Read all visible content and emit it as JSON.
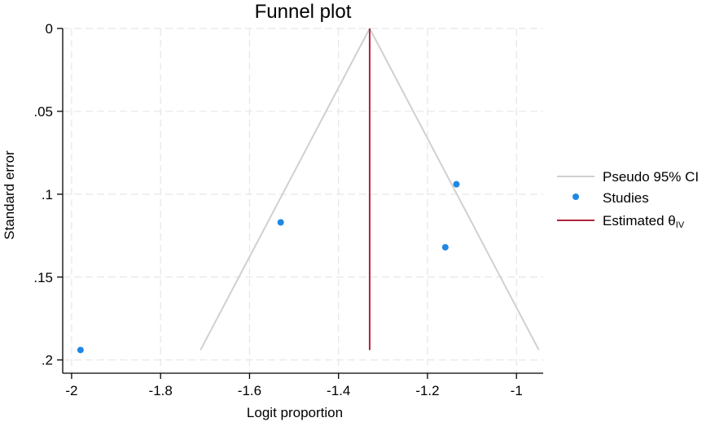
{
  "chart_data": {
    "type": "scatter",
    "title": "Funnel plot",
    "xlabel": "Logit proportion",
    "ylabel": "Standard error",
    "xlim": [
      -2.02,
      -0.94
    ],
    "ylim": [
      0,
      0.208
    ],
    "y_reversed": true,
    "grid": true,
    "x_ticks": [
      {
        "value": -2.0,
        "label": "-2"
      },
      {
        "value": -1.8,
        "label": "-1.8"
      },
      {
        "value": -1.6,
        "label": "-1.6"
      },
      {
        "value": -1.4,
        "label": "-1.4"
      },
      {
        "value": -1.2,
        "label": "-1.2"
      },
      {
        "value": -1.0,
        "label": "-1"
      }
    ],
    "y_ticks": [
      {
        "value": 0,
        "label": "0"
      },
      {
        "value": 0.05,
        "label": ".05"
      },
      {
        "value": 0.1,
        "label": ".1"
      },
      {
        "value": 0.15,
        "label": ".15"
      },
      {
        "value": 0.2,
        "label": ".2"
      }
    ],
    "estimate": {
      "x": -1.33,
      "se_range": [
        0,
        0.194
      ]
    },
    "pseudo_ci": {
      "center": -1.33,
      "se_max": 0.194
    },
    "studies": [
      {
        "x": -1.98,
        "y": 0.194
      },
      {
        "x": -1.53,
        "y": 0.117
      },
      {
        "x": -1.16,
        "y": 0.132
      },
      {
        "x": -1.135,
        "y": 0.094
      }
    ],
    "legend": {
      "position": "right",
      "items": [
        {
          "label": "Pseudo 95% CI",
          "marker": "line",
          "color": "#d0d0d0"
        },
        {
          "label": "Studies",
          "marker": "dot",
          "color": "#1e88e5"
        },
        {
          "label": "Estimated θ",
          "subscript": "IV",
          "marker": "line",
          "color": "#b0243a"
        }
      ]
    },
    "colors": {
      "ci": "#d0d0d0",
      "points": "#1e88e5",
      "estimate": "#b0243a",
      "grid": "#e6e6e6",
      "axis": "#000000"
    }
  }
}
